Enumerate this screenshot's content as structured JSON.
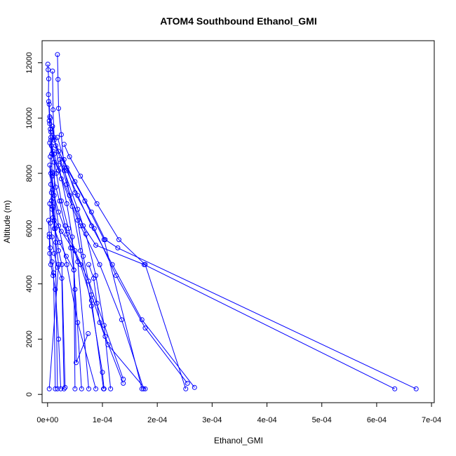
{
  "chart_data": {
    "type": "line",
    "title": "ATOM4 Southbound Ethanol_GMI",
    "xlabel": "Ethanol_GMI",
    "ylabel": "Altitude (m)",
    "xlim": [
      -1e-05,
      0.000705
    ],
    "ylim": [
      -300,
      12800
    ],
    "x_ticks": [
      0,
      0.0001,
      0.0002,
      0.0003,
      0.0004,
      0.0005,
      0.0006,
      0.0007
    ],
    "x_tick_labels": [
      "0e+00",
      "1e-04",
      "2e-04",
      "3e-04",
      "4e-04",
      "5e-04",
      "6e-04",
      "7e-04"
    ],
    "y_ticks": [
      0,
      2000,
      4000,
      6000,
      8000,
      10000,
      12000
    ],
    "y_tick_labels": [
      "0",
      "2000",
      "4000",
      "6000",
      "8000",
      "10000",
      "12000"
    ],
    "color": "#0000ff",
    "grid": false,
    "series": [
      {
        "x": [
          5e-07,
          1e-06,
          2e-06,
          1.5e-06,
          3e-06,
          4e-06,
          5e-06,
          6e-06,
          7.5e-06,
          8e-06,
          1e-05,
          1.2e-05,
          1.5e-05,
          2e-05,
          3e-06
        ],
        "y": [
          11950,
          11750,
          11420,
          10850,
          10500,
          10050,
          9600,
          9200,
          8700,
          8050,
          7100,
          6300,
          5500,
          4700,
          200
        ]
      },
      {
        "x": [
          1.8e-05,
          1.9e-05,
          2e-05,
          2.5e-05,
          3e-05,
          4.5e-05,
          6e-05,
          8e-05,
          0.0001,
          0.000103
        ],
        "y": [
          12300,
          11400,
          10350,
          9400,
          8200,
          6800,
          5200,
          3200,
          800,
          200
        ]
      },
      {
        "x": [
          9e-06,
          1e-05,
          1.2e-05,
          1.5e-05,
          3.5e-05,
          6.8e-05,
          0.000103,
          0.000172
        ],
        "y": [
          11700,
          10300,
          9300,
          9000,
          8200,
          7000,
          5600,
          200
        ]
      },
      {
        "x": [
          3e-05,
          4e-05,
          6e-05,
          9e-05,
          0.00013,
          0.000178,
          0.000252
        ],
        "y": [
          9050,
          8600,
          7900,
          6900,
          5600,
          4700,
          200
        ]
      },
      {
        "x": [
          3e-06,
          6e-06,
          2e-05,
          5e-05,
          8e-05,
          0.000105,
          0.000128,
          0.000672
        ],
        "y": [
          9900,
          9500,
          8800,
          7700,
          6600,
          5600,
          5300,
          200
        ]
      },
      {
        "x": [
          4e-06,
          8e-06,
          2e-05,
          4e-05,
          6.5e-05,
          8.8e-05,
          0.000176,
          0.000633
        ],
        "y": [
          9100,
          8700,
          8100,
          7200,
          6100,
          5400,
          4700,
          200
        ]
      },
      {
        "x": [
          5e-06,
          6e-06,
          9e-06,
          2e-05,
          3.5e-05,
          5e-05,
          7.5e-05,
          0.000138
        ],
        "y": [
          8600,
          8000,
          7400,
          6600,
          5800,
          5200,
          4100,
          550
        ]
      },
      {
        "x": [
          6e-06,
          7e-06,
          1e-05,
          2.5e-05,
          4.5e-05,
          6e-05,
          8e-05,
          0.000102
        ],
        "y": [
          7600,
          7000,
          6400,
          5900,
          5300,
          4700,
          3400,
          200
        ]
      },
      {
        "x": [
          7e-06,
          8e-06,
          1.2e-05,
          2.2e-05,
          3.4e-05,
          4.8e-05,
          6.2e-05
        ],
        "y": [
          7300,
          6700,
          6000,
          5500,
          5000,
          4500,
          200
        ]
      },
      {
        "x": [
          4e-06,
          5e-06,
          8e-06,
          1.2e-05,
          1.8e-05,
          2.6e-05,
          3e-05
        ],
        "y": [
          6900,
          6200,
          5700,
          5100,
          4600,
          4200,
          200
        ]
      },
      {
        "x": [
          2e-06,
          3e-06,
          5e-06,
          8e-06,
          1.1e-05,
          1.4e-05
        ],
        "y": [
          6300,
          5800,
          5300,
          4800,
          4400,
          200
        ]
      },
      {
        "x": [
          3e-06,
          4e-06,
          6e-06,
          1e-05,
          1.4e-05,
          2e-05,
          2.4e-05
        ],
        "y": [
          5700,
          5100,
          4700,
          4300,
          3800,
          2000,
          200
        ]
      },
      {
        "x": [
          7.5e-05,
          8.4e-05,
          9e-05,
          9.5e-05,
          0.00011,
          0.000178
        ],
        "y": [
          4700,
          4200,
          3300,
          2600,
          1800,
          200
        ]
      },
      {
        "x": [
          5e-06,
          1.2e-05,
          3e-05,
          5.5e-05,
          7e-05,
          8.8e-05,
          0.000103,
          0.000115
        ],
        "y": [
          10000,
          9200,
          8100,
          6700,
          5800,
          4300,
          2500,
          200
        ]
      },
      {
        "x": [
          9e-06,
          2e-05,
          3.5e-05,
          4.5e-05,
          5e-05,
          5.2e-05,
          7.4e-05
        ],
        "y": [
          9700,
          8300,
          6900,
          5700,
          3800,
          1150,
          2200
        ]
      },
      {
        "x": [
          1.2e-05,
          2.5e-05,
          5.5e-05,
          6.5e-05,
          8e-05,
          0.000105,
          0.000138
        ],
        "y": [
          8700,
          7800,
          6300,
          5000,
          3600,
          2100,
          400
        ]
      },
      {
        "x": [
          1e-05,
          1.5e-05,
          2.2e-05,
          3.2e-05,
          4.2e-05,
          4.8e-05,
          5e-05
        ],
        "y": [
          8000,
          7500,
          7000,
          6100,
          5300,
          4500,
          200
        ]
      },
      {
        "x": [
          6e-06,
          1e-05,
          1.6e-05,
          2.5e-05,
          3.8e-05,
          5.5e-05,
          7.5e-05
        ],
        "y": [
          9300,
          8800,
          8000,
          7000,
          6000,
          4800,
          200
        ]
      },
      {
        "x": [
          2.2e-05,
          3.5e-05,
          6e-05,
          9.5e-05,
          0.000135,
          0.000175
        ],
        "y": [
          8500,
          7600,
          6100,
          4700,
          2700,
          200
        ]
      },
      {
        "x": [
          1.8e-05,
          3e-05,
          5e-05,
          8.5e-05,
          0.000125,
          0.000178,
          0.000255
        ],
        "y": [
          9300,
          8500,
          7300,
          6000,
          4300,
          2400,
          400
        ]
      },
      {
        "x": [
          3.5e-05,
          5.5e-05,
          8e-05,
          0.000118,
          0.000172,
          0.000268
        ],
        "y": [
          8100,
          7200,
          6100,
          4700,
          2700,
          250
        ]
      },
      {
        "x": [
          8e-06,
          1.2e-05,
          2e-05,
          3.5e-05,
          5.5e-05,
          8.8e-05
        ],
        "y": [
          7900,
          7200,
          6100,
          4700,
          2600,
          200
        ]
      },
      {
        "x": [
          2e-06,
          4e-06,
          7e-06,
          1.2e-05,
          1.8e-05
        ],
        "y": [
          10600,
          9800,
          9000,
          8400,
          200
        ]
      },
      {
        "x": [
          4e-06,
          6e-06,
          9e-06,
          1.4e-05,
          2e-05,
          2.6e-05,
          3.2e-05
        ],
        "y": [
          8300,
          7600,
          6800,
          6000,
          5200,
          4700,
          250
        ]
      }
    ]
  }
}
